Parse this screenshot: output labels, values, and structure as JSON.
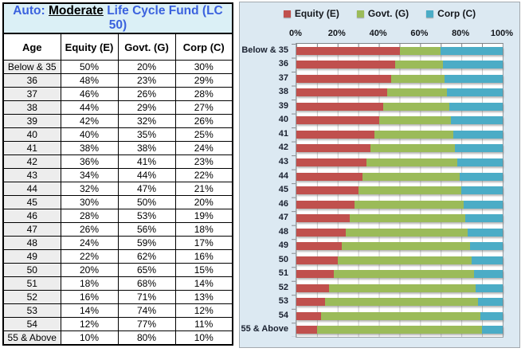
{
  "table": {
    "title": {
      "prefix": "Auto: ",
      "emphasis": "Moderate",
      "suffix": " Life Cycle Fund (LC 50)"
    },
    "columns": [
      "Age",
      "Equity (E)",
      "Govt. (G)",
      "Corp (C)"
    ],
    "rows": [
      {
        "age": "Below & 35",
        "equity": "50%",
        "govt": "20%",
        "corp": "30%"
      },
      {
        "age": "36",
        "equity": "48%",
        "govt": "23%",
        "corp": "29%"
      },
      {
        "age": "37",
        "equity": "46%",
        "govt": "26%",
        "corp": "28%"
      },
      {
        "age": "38",
        "equity": "44%",
        "govt": "29%",
        "corp": "27%"
      },
      {
        "age": "39",
        "equity": "42%",
        "govt": "32%",
        "corp": "26%"
      },
      {
        "age": "40",
        "equity": "40%",
        "govt": "35%",
        "corp": "25%"
      },
      {
        "age": "41",
        "equity": "38%",
        "govt": "38%",
        "corp": "24%"
      },
      {
        "age": "42",
        "equity": "36%",
        "govt": "41%",
        "corp": "23%"
      },
      {
        "age": "43",
        "equity": "34%",
        "govt": "44%",
        "corp": "22%"
      },
      {
        "age": "44",
        "equity": "32%",
        "govt": "47%",
        "corp": "21%"
      },
      {
        "age": "45",
        "equity": "30%",
        "govt": "50%",
        "corp": "20%"
      },
      {
        "age": "46",
        "equity": "28%",
        "govt": "53%",
        "corp": "19%"
      },
      {
        "age": "47",
        "equity": "26%",
        "govt": "56%",
        "corp": "18%"
      },
      {
        "age": "48",
        "equity": "24%",
        "govt": "59%",
        "corp": "17%"
      },
      {
        "age": "49",
        "equity": "22%",
        "govt": "62%",
        "corp": "16%"
      },
      {
        "age": "50",
        "equity": "20%",
        "govt": "65%",
        "corp": "15%"
      },
      {
        "age": "51",
        "equity": "18%",
        "govt": "68%",
        "corp": "14%"
      },
      {
        "age": "52",
        "equity": "16%",
        "govt": "71%",
        "corp": "13%"
      },
      {
        "age": "53",
        "equity": "14%",
        "govt": "74%",
        "corp": "12%"
      },
      {
        "age": "54",
        "equity": "12%",
        "govt": "77%",
        "corp": "11%"
      },
      {
        "age": "55 & Above",
        "equity": "10%",
        "govt": "80%",
        "corp": "10%"
      }
    ]
  },
  "chart_data": {
    "type": "bar",
    "orientation": "horizontal-stacked",
    "legend_position": "top",
    "grid": true,
    "categories": [
      "Below & 35",
      "36",
      "37",
      "38",
      "39",
      "40",
      "41",
      "42",
      "43",
      "44",
      "45",
      "46",
      "47",
      "48",
      "49",
      "50",
      "51",
      "52",
      "53",
      "54",
      "55 & Above"
    ],
    "series": [
      {
        "name": "Equity (E)",
        "color": "#C0504D",
        "values": [
          50,
          48,
          46,
          44,
          42,
          40,
          38,
          36,
          34,
          32,
          30,
          28,
          26,
          24,
          22,
          20,
          18,
          16,
          14,
          12,
          10
        ]
      },
      {
        "name": "Govt. (G)",
        "color": "#9BBB59",
        "values": [
          20,
          23,
          26,
          29,
          32,
          35,
          38,
          41,
          44,
          47,
          50,
          53,
          56,
          59,
          62,
          65,
          68,
          71,
          74,
          77,
          80
        ]
      },
      {
        "name": "Corp (C)",
        "color": "#4BACC6",
        "values": [
          30,
          29,
          28,
          27,
          26,
          25,
          24,
          23,
          22,
          21,
          20,
          19,
          18,
          17,
          16,
          15,
          14,
          13,
          12,
          11,
          10
        ]
      }
    ],
    "x_axis": {
      "tick_labels": [
        "0%",
        "20%",
        "40%",
        "60%",
        "80%",
        "100%"
      ],
      "min": 0,
      "max": 100,
      "major_unit": 20,
      "minor_unit": 10
    }
  },
  "colors": {
    "title_blue": "#3B62DE",
    "title_bg": "#DBF0F6",
    "chart_bg": "#DCE9F2",
    "age_col_bg": "#EDEDED",
    "gridline": "#C9C9C9"
  }
}
